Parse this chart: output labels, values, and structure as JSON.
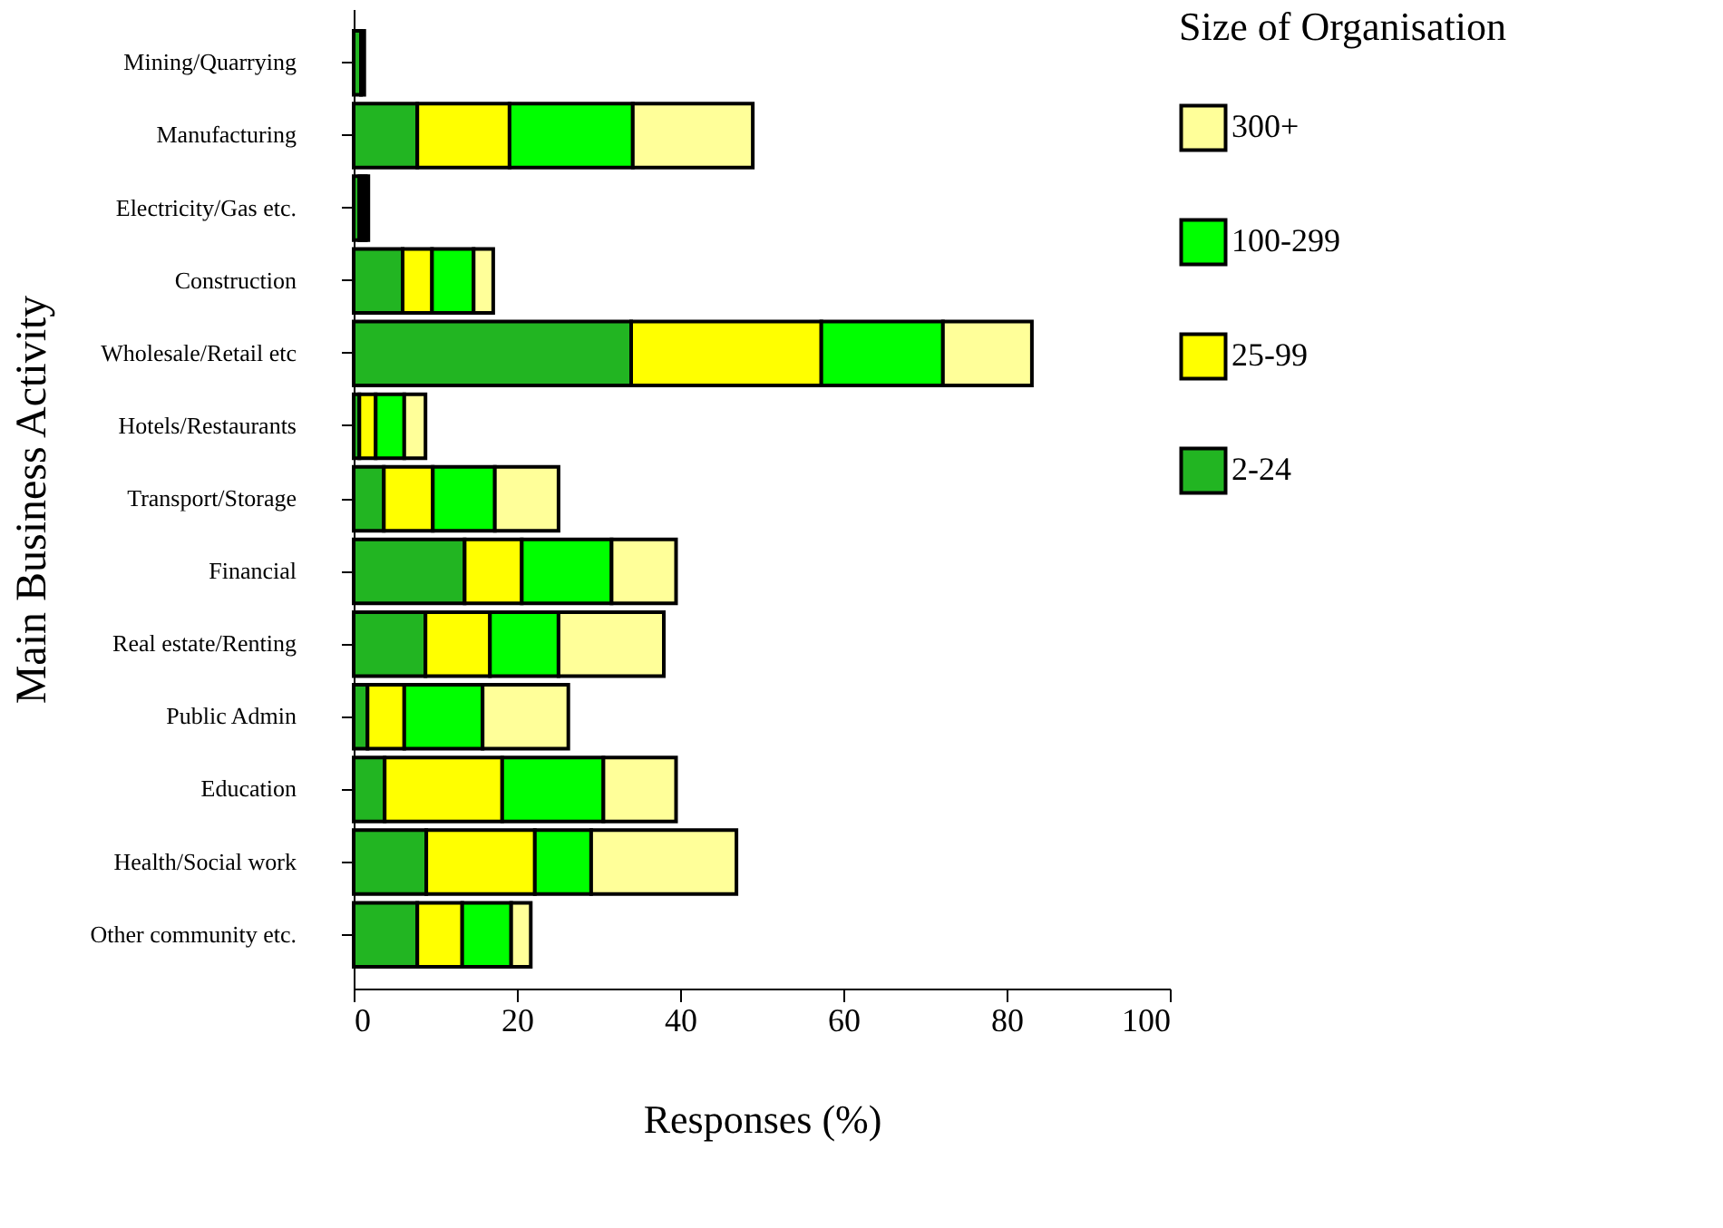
{
  "chart_data": {
    "type": "bar",
    "orientation": "horizontal",
    "stacked": true,
    "xlabel": "Responses (%)",
    "ylabel": "Main Business Activity",
    "legend_title": "Size of Organisation",
    "categories": [
      "Mining/Quarrying",
      "Manufacturing",
      "Electricity/Gas etc.",
      "Construction",
      "Wholesale/Retail etc",
      "Hotels/Restaurants",
      "Transport/Storage",
      "Financial",
      "Real estate/Renting",
      "Public Admin",
      "Education",
      "Health/Social work",
      "Other community etc."
    ],
    "series": [
      {
        "name": "2-24",
        "color": "#22b522",
        "values": [
          0.9,
          7.8,
          0.7,
          6,
          34,
          0.7,
          3.7,
          13.6,
          8.8,
          1.7,
          3.8,
          8.9,
          7.8
        ]
      },
      {
        "name": "25-99",
        "color": "#ffff00",
        "values": [
          null,
          11.3,
          0.4,
          3.6,
          23.3,
          2,
          6,
          7,
          7.9,
          4.5,
          14.4,
          13.3,
          5.5
        ]
      },
      {
        "name": "100-299",
        "color": "#00ff00",
        "values": [
          null,
          15.1,
          0.4,
          5.1,
          14.9,
          3.5,
          7.6,
          11,
          8.4,
          9.6,
          12.4,
          6.9,
          6
        ]
      },
      {
        "name": "300+",
        "color": "#ffff99",
        "values": [
          0.4,
          14.7,
          0.3,
          2.4,
          10.9,
          2.6,
          7.8,
          7.9,
          12.9,
          10.5,
          8.9,
          17.8,
          2.4
        ]
      }
    ],
    "xlim": [
      0,
      100
    ],
    "xticks": [
      0,
      20,
      40,
      60,
      80,
      100
    ],
    "grid": false,
    "legend": "right"
  }
}
